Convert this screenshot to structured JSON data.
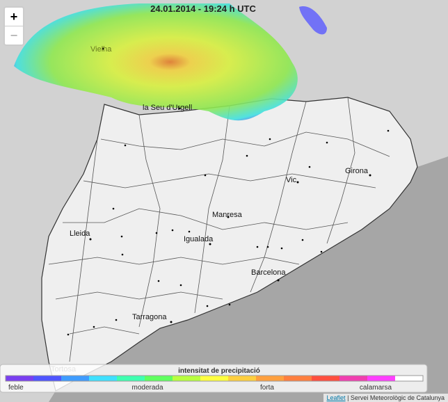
{
  "map": {
    "zoom_in": "+",
    "zoom_out": "−",
    "timestamp": "24.01.2014 - 19:24 h UTC",
    "places": [
      {
        "label": "Vielha"
      },
      {
        "label": "la Seu d'Urgell"
      },
      {
        "label": "Vic"
      },
      {
        "label": "Girona"
      },
      {
        "label": "Manresa"
      },
      {
        "label": "Lleida"
      },
      {
        "label": "Igualada"
      },
      {
        "label": "Barcelona"
      },
      {
        "label": "Tarragona"
      },
      {
        "label": "Tortosa"
      }
    ],
    "legend": {
      "title": "intensitat de precipitació",
      "labels": [
        "feble",
        "moderada",
        "forta",
        "calamarsa"
      ],
      "colors": [
        "#7a3ff0",
        "#4f55ff",
        "#3f9cff",
        "#3fe0ff",
        "#3fffb0",
        "#5fff5f",
        "#b8ff3f",
        "#ffff3f",
        "#ffcf3f",
        "#ffa03f",
        "#ff7f3f",
        "#ff4f3f",
        "#f03fb0",
        "#ff3fff",
        "#ffffff"
      ]
    },
    "attribution": {
      "link": "Leaflet",
      "text": "| Servei Meteorològic de Catalunya"
    }
  }
}
